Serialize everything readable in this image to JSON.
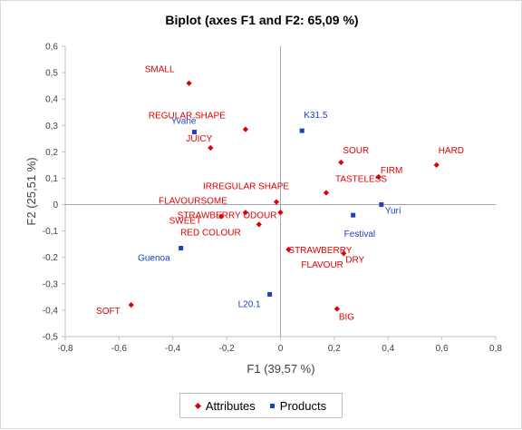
{
  "chart_data": {
    "type": "scatter",
    "title": "Biplot (axes F1 and F2: 65,09 %)",
    "xlabel": "F1 (39,57 %)",
    "ylabel": "F2 (25,51 %)",
    "xlim": [
      -0.8,
      0.8
    ],
    "ylim": [
      -0.5,
      0.6
    ],
    "x_ticks": [
      "-0,8",
      "-0,6",
      "-0,4",
      "-0,2",
      "0",
      "0,2",
      "0,4",
      "0,6",
      "0,8"
    ],
    "y_ticks": [
      "0,6",
      "0,5",
      "0,4",
      "0,3",
      "0,2",
      "0,1",
      "0",
      "-0,1",
      "-0,2",
      "-0,3",
      "-0,4",
      "-0,5"
    ],
    "legend_position": "bottom",
    "series": [
      {
        "name": "Attributes",
        "color": "#e00000",
        "marker": "diamond",
        "points": [
          {
            "label": "SMALL",
            "x": -0.34,
            "y": 0.46
          },
          {
            "label": "REGULAR SHAPE",
            "x": -0.13,
            "y": 0.285
          },
          {
            "label": "JUICY",
            "x": -0.26,
            "y": 0.215
          },
          {
            "label": "SOUR",
            "x": 0.225,
            "y": 0.16
          },
          {
            "label": "HARD",
            "x": 0.58,
            "y": 0.15
          },
          {
            "label": "FIRM",
            "x": 0.365,
            "y": 0.105
          },
          {
            "label": "TASTELESS",
            "x": 0.17,
            "y": 0.045
          },
          {
            "label": "IRREGULAR SHAPE",
            "x": -0.015,
            "y": 0.01
          },
          {
            "label": "FLAVOURSOME",
            "x": -0.13,
            "y": -0.03
          },
          {
            "label": "STRAWBERRY ODOUR",
            "x": 0.0,
            "y": -0.03
          },
          {
            "label": "SWEET",
            "x": -0.22,
            "y": -0.045
          },
          {
            "label": "RED COLOUR",
            "x": -0.08,
            "y": -0.075
          },
          {
            "label": "STRAWBERRY FLAVOUR",
            "x": 0.03,
            "y": -0.17
          },
          {
            "label": "DRY",
            "x": 0.235,
            "y": -0.185
          },
          {
            "label": "SOFT",
            "x": -0.555,
            "y": -0.38
          },
          {
            "label": "BIG",
            "x": 0.21,
            "y": -0.395
          }
        ]
      },
      {
        "name": "Products",
        "color": "#1f3fbf",
        "marker": "square",
        "points": [
          {
            "label": "K31.5",
            "x": 0.08,
            "y": 0.28
          },
          {
            "label": "Yvahé",
            "x": -0.32,
            "y": 0.275
          },
          {
            "label": "Yurí",
            "x": 0.375,
            "y": 0.0
          },
          {
            "label": "Festival",
            "x": 0.27,
            "y": -0.04
          },
          {
            "label": "Guenoa",
            "x": -0.37,
            "y": -0.165
          },
          {
            "label": "L20.1",
            "x": -0.04,
            "y": -0.34
          }
        ]
      }
    ]
  }
}
